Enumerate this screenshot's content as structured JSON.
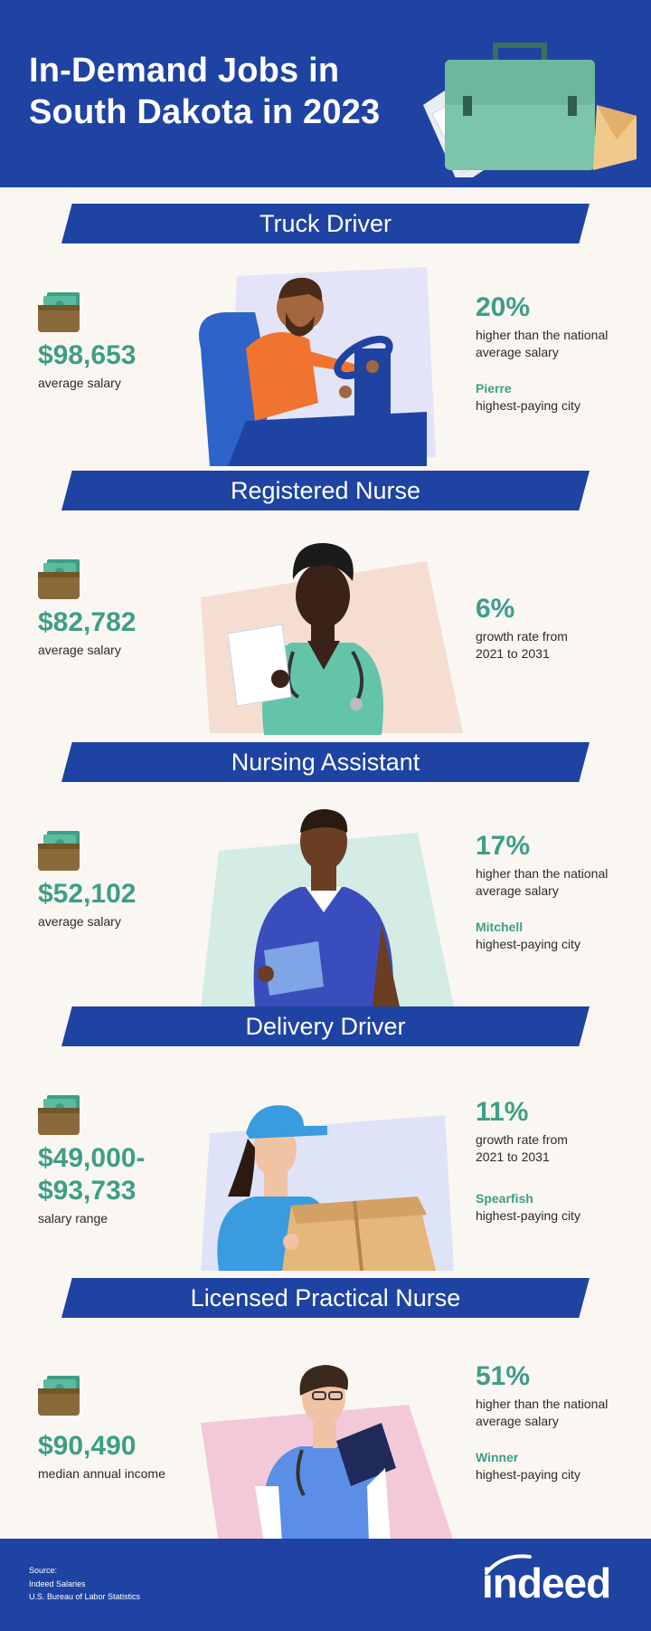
{
  "header": {
    "title_line1": "In-Demand Jobs in",
    "title_line2": "South Dakota in 2023",
    "briefcase_icon": "briefcase-icon"
  },
  "colors": {
    "brand_blue": "#1f43a2",
    "accent_green": "#3e9e86",
    "background": "#faf7f2"
  },
  "jobs": [
    {
      "title": "Truck Driver",
      "salary": "$98,653",
      "salary_label": "average salary",
      "stat": "20%",
      "stat_label": "higher than the national average salary",
      "city": "Pierre",
      "city_label": "highest-paying city"
    },
    {
      "title": "Registered Nurse",
      "salary": "$82,782",
      "salary_label": "average salary",
      "stat": "6%",
      "stat_label": "growth rate from 2021 to 2031"
    },
    {
      "title": "Nursing Assistant",
      "salary": "$52,102",
      "salary_label": "average salary",
      "stat": "17%",
      "stat_label": "higher than the national average salary",
      "city": "Mitchell",
      "city_label": "highest-paying city"
    },
    {
      "title": "Delivery Driver",
      "salary": "$49,000-",
      "salary_line2": "$93,733",
      "salary_label": "salary range",
      "stat": "11%",
      "stat_label": "growth rate from 2021 to 2031",
      "city": "Spearfish",
      "city_label": "highest-paying city"
    },
    {
      "title": "Licensed Practical Nurse",
      "salary": "$90,490",
      "salary_label": "median annual income",
      "stat": "51%",
      "stat_label": "higher than the national average salary",
      "city": "Winner",
      "city_label": "highest-paying city"
    }
  ],
  "footer": {
    "source_title": "Source:",
    "sources": [
      "Indeed Salaries",
      "U.S. Bureau of Labor Statistics"
    ],
    "logo": "indeed"
  }
}
